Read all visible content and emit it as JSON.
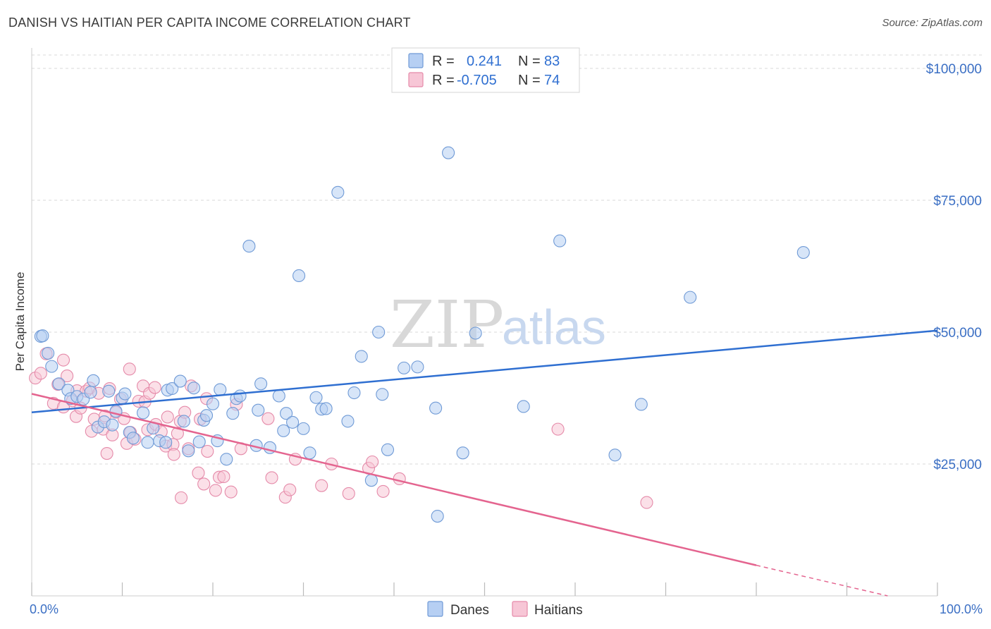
{
  "header": {
    "title": "DANISH VS HAITIAN PER CAPITA INCOME CORRELATION CHART",
    "source": "Source: ZipAtlas.com"
  },
  "watermark": {
    "zip": "ZIP",
    "atlas": "atlas"
  },
  "legend": {
    "row1": {
      "r_label": "R =",
      "r_value": "0.241",
      "n_label": "N =",
      "n_value": "83"
    },
    "row2": {
      "r_label": "R =",
      "r_value": "-0.705",
      "n_label": "N =",
      "n_value": "74"
    }
  },
  "bottom_legend": {
    "danes": "Danes",
    "haitians": "Haitians"
  },
  "colors": {
    "danes_fill": "#b6cff3",
    "danes_stroke": "#6f9ad6",
    "danes_line": "#2f6fd1",
    "haitians_fill": "#f7c6d6",
    "haitians_stroke": "#e58aa9",
    "haitians_line": "#e4648f",
    "grid": "#d9d9d9",
    "axis_text": "#3b6fc4"
  },
  "chart_data": {
    "type": "scatter",
    "title": "DANISH VS HAITIAN PER CAPITA INCOME CORRELATION CHART",
    "xlabel": "",
    "ylabel": "Per Capita Income",
    "xlim": [
      0,
      100
    ],
    "ylim": [
      0,
      105000
    ],
    "x_ticks": [
      "0.0%",
      "100.0%"
    ],
    "y_ticks": [
      {
        "value": 100000,
        "label": "$100,000"
      },
      {
        "value": 75000,
        "label": "$75,000"
      },
      {
        "value": 50000,
        "label": "$50,000"
      },
      {
        "value": 25000,
        "label": "$25,000"
      }
    ],
    "grid": true,
    "legend_position": "top-center",
    "series": [
      {
        "name": "Danes",
        "r": 0.241,
        "n": 83,
        "trend": {
          "x": [
            0,
            100
          ],
          "y": [
            34800,
            50300
          ]
        },
        "points": [
          [
            1,
            49200
          ],
          [
            1.2,
            49300
          ],
          [
            1.8,
            46000
          ],
          [
            2.2,
            43500
          ],
          [
            3,
            40200
          ],
          [
            4,
            39000
          ],
          [
            4.3,
            37400
          ],
          [
            5,
            37800
          ],
          [
            5.7,
            37300
          ],
          [
            6.5,
            38600
          ],
          [
            6.8,
            40800
          ],
          [
            7.3,
            32000
          ],
          [
            8,
            33000
          ],
          [
            8.5,
            38800
          ],
          [
            8.9,
            32400
          ],
          [
            9.3,
            35000
          ],
          [
            10,
            37500
          ],
          [
            10.3,
            38300
          ],
          [
            10.8,
            31000
          ],
          [
            11.2,
            29900
          ],
          [
            12.3,
            34700
          ],
          [
            12.8,
            29100
          ],
          [
            13.4,
            31800
          ],
          [
            14.1,
            29400
          ],
          [
            14.8,
            29100
          ],
          [
            15,
            39000
          ],
          [
            15.5,
            39300
          ],
          [
            16.4,
            40700
          ],
          [
            16.8,
            33100
          ],
          [
            17.3,
            27500
          ],
          [
            17.9,
            39400
          ],
          [
            18.5,
            29200
          ],
          [
            19,
            33300
          ],
          [
            19.3,
            34200
          ],
          [
            20,
            36400
          ],
          [
            20.5,
            29400
          ],
          [
            20.8,
            39100
          ],
          [
            21.5,
            25900
          ],
          [
            22.2,
            34600
          ],
          [
            22.6,
            37400
          ],
          [
            23,
            37900
          ],
          [
            24,
            66300
          ],
          [
            24.8,
            28500
          ],
          [
            25,
            35200
          ],
          [
            25.3,
            40200
          ],
          [
            26.3,
            28100
          ],
          [
            27.3,
            37900
          ],
          [
            27.8,
            31300
          ],
          [
            28.1,
            34600
          ],
          [
            28.8,
            32900
          ],
          [
            29.5,
            60700
          ],
          [
            30,
            31700
          ],
          [
            30.7,
            27100
          ],
          [
            31.4,
            37600
          ],
          [
            32,
            35400
          ],
          [
            32.5,
            35500
          ],
          [
            33.8,
            76500
          ],
          [
            34.9,
            33100
          ],
          [
            35.6,
            38500
          ],
          [
            36.4,
            45400
          ],
          [
            37.5,
            21900
          ],
          [
            38.3,
            50000
          ],
          [
            38.7,
            38200
          ],
          [
            39.3,
            27700
          ],
          [
            41.1,
            43200
          ],
          [
            42.6,
            43400
          ],
          [
            44.6,
            35600
          ],
          [
            44.8,
            15100
          ],
          [
            46,
            84000
          ],
          [
            47.6,
            27100
          ],
          [
            49,
            49800
          ],
          [
            54.3,
            35900
          ],
          [
            58.3,
            67300
          ],
          [
            64.4,
            26700
          ],
          [
            67.3,
            36300
          ],
          [
            72.7,
            56600
          ],
          [
            85.2,
            65100
          ]
        ]
      },
      {
        "name": "Haitians",
        "r": -0.705,
        "n": 74,
        "trend": {
          "x": [
            0,
            80
          ],
          "y": [
            38300,
            5800
          ]
        },
        "trend_dashed": {
          "x": [
            80,
            94.5
          ],
          "y": [
            5800,
            0
          ]
        },
        "points": [
          [
            0.4,
            41300
          ],
          [
            1,
            42200
          ],
          [
            1.6,
            45900
          ],
          [
            2.4,
            36500
          ],
          [
            2.9,
            40100
          ],
          [
            3.5,
            35800
          ],
          [
            3.5,
            44700
          ],
          [
            3.9,
            41700
          ],
          [
            4.5,
            37000
          ],
          [
            4.9,
            34000
          ],
          [
            5,
            38900
          ],
          [
            5.4,
            35600
          ],
          [
            6,
            38800
          ],
          [
            6.4,
            39400
          ],
          [
            6.6,
            31200
          ],
          [
            6.9,
            33500
          ],
          [
            7.4,
            38400
          ],
          [
            7.9,
            31600
          ],
          [
            8.1,
            34100
          ],
          [
            8.3,
            27000
          ],
          [
            8.6,
            39300
          ],
          [
            8.9,
            30500
          ],
          [
            9.3,
            34800
          ],
          [
            9.8,
            37300
          ],
          [
            10.2,
            33600
          ],
          [
            10.5,
            28900
          ],
          [
            10.8,
            43000
          ],
          [
            10.9,
            31000
          ],
          [
            11.4,
            29700
          ],
          [
            11.8,
            36900
          ],
          [
            12.3,
            39800
          ],
          [
            12.5,
            36800
          ],
          [
            12.8,
            31500
          ],
          [
            13,
            38400
          ],
          [
            13.6,
            39500
          ],
          [
            13.7,
            32500
          ],
          [
            14.3,
            31100
          ],
          [
            14.8,
            28400
          ],
          [
            15,
            33900
          ],
          [
            15.6,
            28700
          ],
          [
            15.7,
            26800
          ],
          [
            16.1,
            30800
          ],
          [
            16.4,
            33100
          ],
          [
            16.5,
            18600
          ],
          [
            16.9,
            34800
          ],
          [
            17.3,
            27900
          ],
          [
            17.6,
            39800
          ],
          [
            18.4,
            23300
          ],
          [
            18.6,
            33500
          ],
          [
            19,
            21200
          ],
          [
            19.3,
            37400
          ],
          [
            19.4,
            27400
          ],
          [
            20.3,
            20000
          ],
          [
            20.7,
            22500
          ],
          [
            21.2,
            22600
          ],
          [
            22,
            19700
          ],
          [
            22.6,
            36300
          ],
          [
            23.1,
            27900
          ],
          [
            26.1,
            33600
          ],
          [
            26.5,
            22400
          ],
          [
            28,
            18700
          ],
          [
            28.5,
            20100
          ],
          [
            29.1,
            25900
          ],
          [
            32,
            20900
          ],
          [
            33.1,
            25000
          ],
          [
            35,
            19400
          ],
          [
            37.2,
            24200
          ],
          [
            37.6,
            25400
          ],
          [
            38.8,
            19800
          ],
          [
            40.6,
            22200
          ],
          [
            58.1,
            31600
          ],
          [
            67.9,
            17700
          ]
        ]
      }
    ]
  }
}
